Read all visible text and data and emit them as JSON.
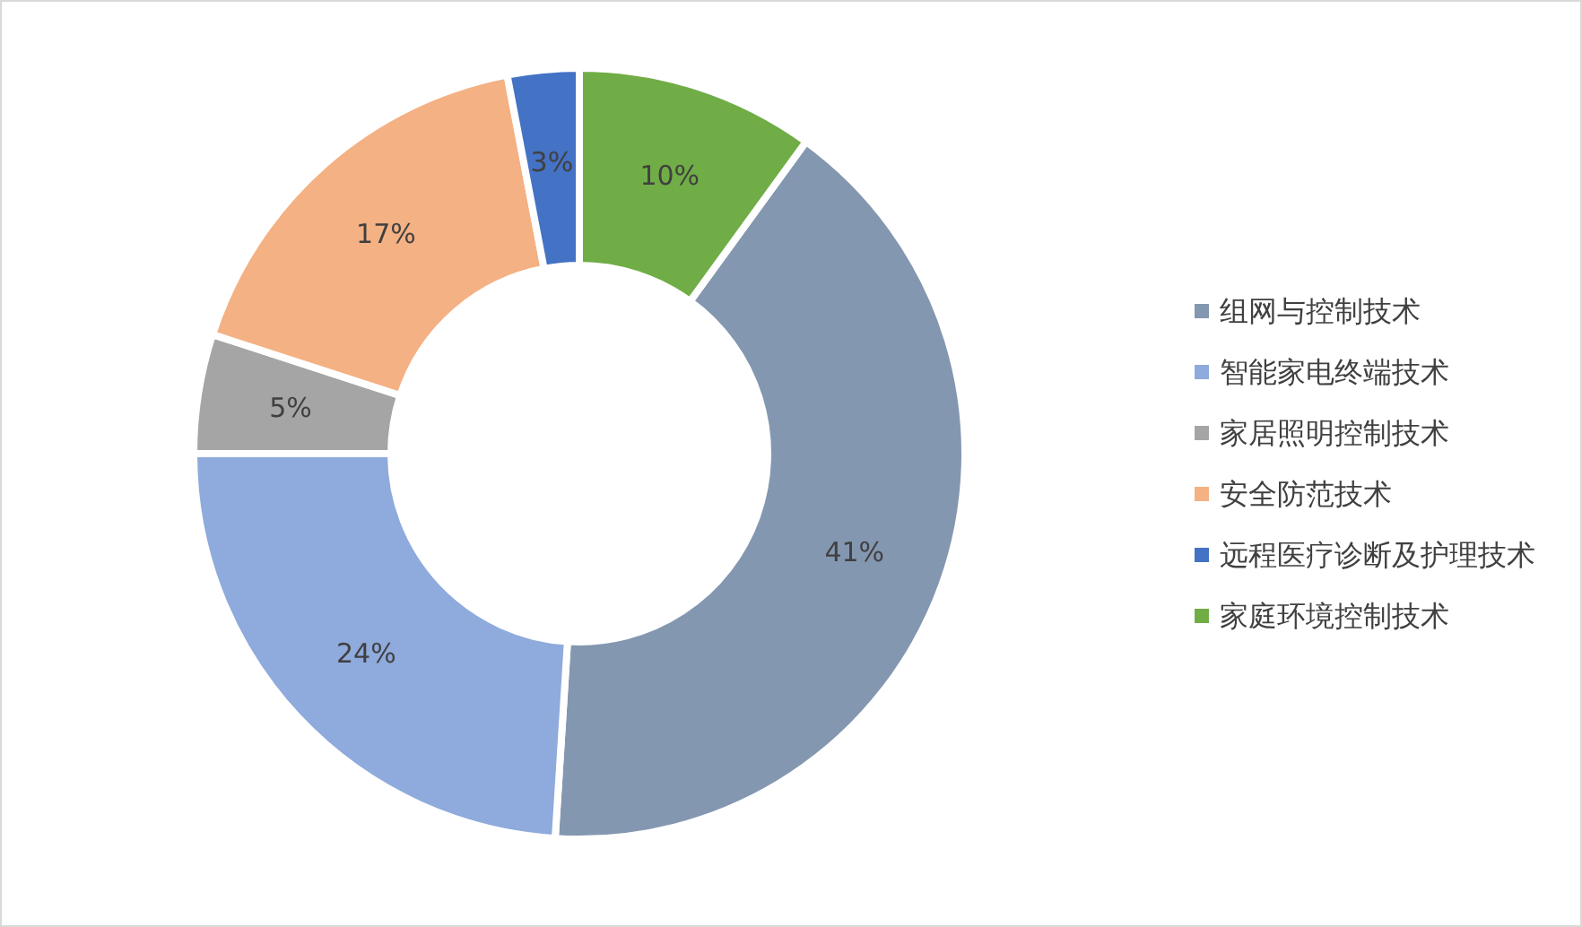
{
  "chart_data": {
    "type": "donut",
    "categories": [
      "组网与控制技术",
      "智能家电终端技术",
      "家居照明控制技术",
      "安全防范技术",
      "远程医疗诊断及护理技术",
      "家庭环境控制技术"
    ],
    "values": [
      41,
      24,
      5,
      17,
      3,
      10
    ],
    "colors": [
      "#8497b0",
      "#8faadc",
      "#a5a5a5",
      "#f4b183",
      "#4472c4",
      "#70ad47"
    ],
    "value_labels": [
      "41%",
      "24%",
      "5%",
      "17%",
      "3%",
      "10%"
    ],
    "legend": "right"
  }
}
